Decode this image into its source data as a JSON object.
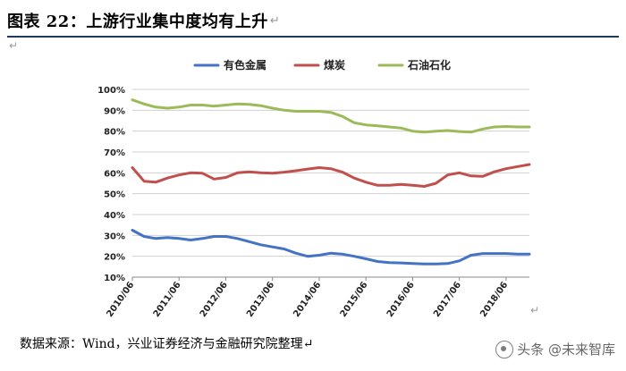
{
  "header": {
    "title": "图表 22：上游行业集中度均有上升",
    "para_mark": "↵"
  },
  "source": "数据来源：Wind，兴业证券经济与金融研究院整理↵",
  "watermark": "头条 @未来智库",
  "chart_data": {
    "type": "line",
    "title": "",
    "xlabel": "",
    "ylabel": "",
    "ylim": [
      0.1,
      1.0
    ],
    "y_ticks": [
      "10%",
      "20%",
      "30%",
      "40%",
      "50%",
      "60%",
      "70%",
      "80%",
      "90%",
      "100%"
    ],
    "x_tick_labels": [
      "2010/06",
      "2011/06",
      "2012/06",
      "2013/06",
      "2014/06",
      "2015/06",
      "2016/06",
      "2017/06",
      "2018/06"
    ],
    "legend_position": "top",
    "grid": true,
    "x": [
      "2010/06",
      "2010/09",
      "2010/12",
      "2011/03",
      "2011/06",
      "2011/09",
      "2011/12",
      "2012/03",
      "2012/06",
      "2012/09",
      "2012/12",
      "2013/03",
      "2013/06",
      "2013/09",
      "2013/12",
      "2014/03",
      "2014/06",
      "2014/09",
      "2014/12",
      "2015/03",
      "2015/06",
      "2015/09",
      "2015/12",
      "2016/03",
      "2016/06",
      "2016/09",
      "2016/12",
      "2017/03",
      "2017/06",
      "2017/09",
      "2017/12",
      "2018/03",
      "2018/06",
      "2018/09",
      "2018/12"
    ],
    "series": [
      {
        "name": "有色金属",
        "color": "#4472c4",
        "values": [
          0.325,
          0.295,
          0.285,
          0.29,
          0.285,
          0.278,
          0.285,
          0.295,
          0.295,
          0.285,
          0.27,
          0.255,
          0.245,
          0.235,
          0.215,
          0.2,
          0.205,
          0.215,
          0.21,
          0.2,
          0.188,
          0.175,
          0.17,
          0.168,
          0.165,
          0.163,
          0.163,
          0.165,
          0.178,
          0.205,
          0.213,
          0.213,
          0.213,
          0.21,
          0.21
        ]
      },
      {
        "name": "煤炭",
        "color": "#c0504d",
        "values": [
          0.625,
          0.56,
          0.555,
          0.575,
          0.59,
          0.6,
          0.598,
          0.57,
          0.578,
          0.6,
          0.605,
          0.6,
          0.598,
          0.603,
          0.61,
          0.618,
          0.625,
          0.62,
          0.603,
          0.575,
          0.555,
          0.54,
          0.54,
          0.545,
          0.54,
          0.535,
          0.55,
          0.59,
          0.6,
          0.585,
          0.583,
          0.605,
          0.62,
          0.63,
          0.64
        ]
      },
      {
        "name": "石油石化",
        "color": "#9bbb59",
        "values": [
          0.95,
          0.93,
          0.915,
          0.91,
          0.915,
          0.925,
          0.925,
          0.92,
          0.925,
          0.93,
          0.928,
          0.922,
          0.91,
          0.9,
          0.895,
          0.895,
          0.895,
          0.89,
          0.87,
          0.84,
          0.83,
          0.825,
          0.82,
          0.815,
          0.8,
          0.795,
          0.8,
          0.803,
          0.798,
          0.795,
          0.81,
          0.82,
          0.822,
          0.82,
          0.82
        ]
      }
    ]
  }
}
